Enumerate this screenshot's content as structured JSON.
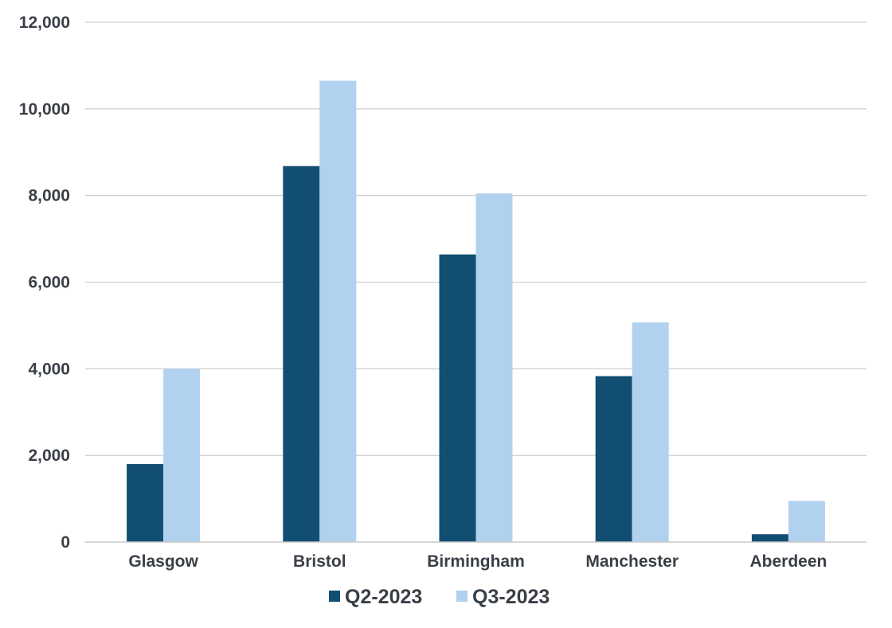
{
  "chart_data": {
    "type": "bar",
    "title": "",
    "xlabel": "",
    "ylabel": "",
    "categories": [
      "Glasgow",
      "Bristol",
      "Birmingham",
      "Manchester",
      "Aberdeen"
    ],
    "series": [
      {
        "name": "Q2-2023",
        "color": "#124e72",
        "values": [
          1800,
          8680,
          6640,
          3830,
          180
        ]
      },
      {
        "name": "Q3-2023",
        "color": "#b1d2ef",
        "values": [
          4000,
          10650,
          8050,
          5070,
          950
        ]
      }
    ],
    "ylim": [
      0,
      12000
    ],
    "yticks": [
      0,
      2000,
      4000,
      6000,
      8000,
      10000,
      12000
    ],
    "ytick_labels": [
      "0",
      "2,000",
      "4,000",
      "6,000",
      "8,000",
      "10,000",
      "12,000"
    ],
    "grid": true,
    "legend_position": "bottom-center",
    "colors": {
      "grid": "#d0d0d0",
      "text": "#3a3f47"
    }
  }
}
